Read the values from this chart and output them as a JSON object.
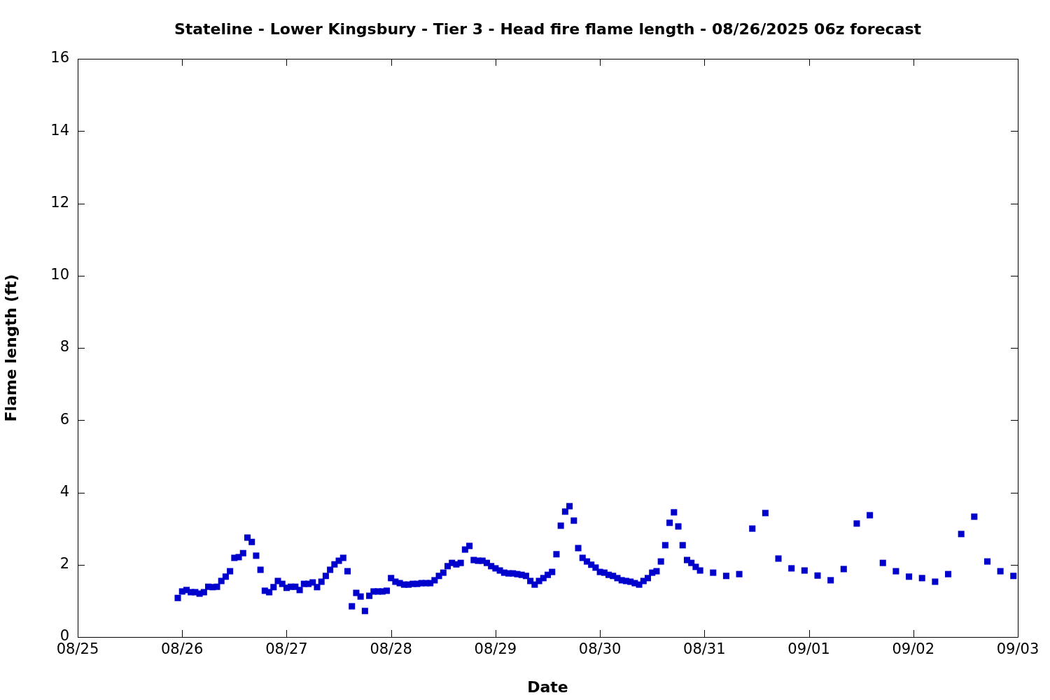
{
  "chart_data": {
    "type": "scatter",
    "title": "Stateline - Lower Kingsbury - Tier 3 - Head fire flame length - 08/26/2025 06z forecast",
    "xlabel": "Date",
    "ylabel": "Flame length (ft)",
    "x": [
      "2025-08-25T23:00",
      "2025-08-26T00:00",
      "2025-08-26T01:00",
      "2025-08-26T02:00",
      "2025-08-26T03:00",
      "2025-08-26T04:00",
      "2025-08-26T05:00",
      "2025-08-26T06:00",
      "2025-08-26T07:00",
      "2025-08-26T08:00",
      "2025-08-26T09:00",
      "2025-08-26T10:00",
      "2025-08-26T11:00",
      "2025-08-26T12:00",
      "2025-08-26T13:00",
      "2025-08-26T14:00",
      "2025-08-26T15:00",
      "2025-08-26T16:00",
      "2025-08-26T17:00",
      "2025-08-26T18:00",
      "2025-08-26T19:00",
      "2025-08-26T20:00",
      "2025-08-26T21:00",
      "2025-08-26T22:00",
      "2025-08-26T23:00",
      "2025-08-27T00:00",
      "2025-08-27T01:00",
      "2025-08-27T02:00",
      "2025-08-27T03:00",
      "2025-08-27T04:00",
      "2025-08-27T05:00",
      "2025-08-27T06:00",
      "2025-08-27T07:00",
      "2025-08-27T08:00",
      "2025-08-27T09:00",
      "2025-08-27T10:00",
      "2025-08-27T11:00",
      "2025-08-27T12:00",
      "2025-08-27T13:00",
      "2025-08-27T14:00",
      "2025-08-27T15:00",
      "2025-08-27T16:00",
      "2025-08-27T17:00",
      "2025-08-27T18:00",
      "2025-08-27T19:00",
      "2025-08-27T20:00",
      "2025-08-27T21:00",
      "2025-08-27T22:00",
      "2025-08-27T23:00",
      "2025-08-28T00:00",
      "2025-08-28T01:00",
      "2025-08-28T02:00",
      "2025-08-28T03:00",
      "2025-08-28T04:00",
      "2025-08-28T05:00",
      "2025-08-28T06:00",
      "2025-08-28T07:00",
      "2025-08-28T08:00",
      "2025-08-28T09:00",
      "2025-08-28T10:00",
      "2025-08-28T11:00",
      "2025-08-28T12:00",
      "2025-08-28T13:00",
      "2025-08-28T14:00",
      "2025-08-28T15:00",
      "2025-08-28T16:00",
      "2025-08-28T17:00",
      "2025-08-28T18:00",
      "2025-08-28T19:00",
      "2025-08-28T20:00",
      "2025-08-28T21:00",
      "2025-08-28T22:00",
      "2025-08-28T23:00",
      "2025-08-29T00:00",
      "2025-08-29T01:00",
      "2025-08-29T02:00",
      "2025-08-29T03:00",
      "2025-08-29T04:00",
      "2025-08-29T05:00",
      "2025-08-29T06:00",
      "2025-08-29T07:00",
      "2025-08-29T08:00",
      "2025-08-29T09:00",
      "2025-08-29T10:00",
      "2025-08-29T11:00",
      "2025-08-29T12:00",
      "2025-08-29T13:00",
      "2025-08-29T14:00",
      "2025-08-29T15:00",
      "2025-08-29T16:00",
      "2025-08-29T17:00",
      "2025-08-29T18:00",
      "2025-08-29T19:00",
      "2025-08-29T20:00",
      "2025-08-29T21:00",
      "2025-08-29T22:00",
      "2025-08-29T23:00",
      "2025-08-30T00:00",
      "2025-08-30T01:00",
      "2025-08-30T02:00",
      "2025-08-30T03:00",
      "2025-08-30T04:00",
      "2025-08-30T05:00",
      "2025-08-30T06:00",
      "2025-08-30T07:00",
      "2025-08-30T08:00",
      "2025-08-30T09:00",
      "2025-08-30T10:00",
      "2025-08-30T11:00",
      "2025-08-30T12:00",
      "2025-08-30T13:00",
      "2025-08-30T14:00",
      "2025-08-30T15:00",
      "2025-08-30T16:00",
      "2025-08-30T17:00",
      "2025-08-30T18:00",
      "2025-08-30T19:00",
      "2025-08-30T20:00",
      "2025-08-30T21:00",
      "2025-08-30T22:00",
      "2025-08-30T23:00",
      "2025-08-31T02:00",
      "2025-08-31T05:00",
      "2025-08-31T08:00",
      "2025-08-31T11:00",
      "2025-08-31T14:00",
      "2025-08-31T17:00",
      "2025-08-31T20:00",
      "2025-08-31T23:00",
      "2025-09-01T02:00",
      "2025-09-01T05:00",
      "2025-09-01T08:00",
      "2025-09-01T11:00",
      "2025-09-01T14:00",
      "2025-09-01T17:00",
      "2025-09-01T20:00",
      "2025-09-01T23:00",
      "2025-09-02T02:00",
      "2025-09-02T05:00",
      "2025-09-02T08:00",
      "2025-09-02T11:00",
      "2025-09-02T14:00",
      "2025-09-02T17:00",
      "2025-09-02T20:00",
      "2025-09-02T23:00"
    ],
    "values": [
      1.08,
      1.26,
      1.3,
      1.24,
      1.24,
      1.2,
      1.24,
      1.39,
      1.38,
      1.39,
      1.55,
      1.67,
      1.82,
      2.19,
      2.21,
      2.32,
      2.75,
      2.63,
      2.25,
      1.86,
      1.28,
      1.24,
      1.38,
      1.55,
      1.47,
      1.36,
      1.39,
      1.39,
      1.3,
      1.47,
      1.47,
      1.51,
      1.38,
      1.53,
      1.69,
      1.86,
      2.01,
      2.11,
      2.19,
      1.82,
      0.85,
      1.22,
      1.12,
      0.72,
      1.14,
      1.26,
      1.26,
      1.26,
      1.28,
      1.63,
      1.53,
      1.49,
      1.45,
      1.45,
      1.47,
      1.47,
      1.49,
      1.49,
      1.49,
      1.57,
      1.69,
      1.78,
      1.96,
      2.05,
      2.01,
      2.05,
      2.42,
      2.52,
      2.13,
      2.11,
      2.11,
      2.05,
      1.96,
      1.9,
      1.84,
      1.78,
      1.76,
      1.76,
      1.74,
      1.72,
      1.69,
      1.55,
      1.45,
      1.55,
      1.63,
      1.72,
      1.8,
      2.29,
      3.08,
      3.47,
      3.62,
      3.22,
      2.46,
      2.19,
      2.09,
      2.0,
      1.92,
      1.8,
      1.78,
      1.72,
      1.69,
      1.63,
      1.57,
      1.55,
      1.53,
      1.49,
      1.45,
      1.55,
      1.63,
      1.78,
      1.82,
      2.09,
      2.54,
      3.16,
      3.45,
      3.06,
      2.54,
      2.13,
      2.05,
      1.94,
      1.84,
      1.78,
      1.69,
      1.74,
      3.0,
      3.43,
      2.17,
      1.9,
      1.84,
      1.7,
      1.57,
      1.88,
      3.14,
      3.37,
      2.05,
      1.82,
      1.67,
      1.63,
      1.53,
      1.74,
      2.85,
      3.33,
      2.09,
      1.82,
      1.69
    ],
    "color": "#0000cc",
    "marker": "square",
    "legend": false,
    "grid": false,
    "xlim": [
      "2025-08-25",
      "2025-09-03"
    ],
    "xticks": [
      {
        "value": "2025-08-25",
        "label": "08/25"
      },
      {
        "value": "2025-08-26",
        "label": "08/26"
      },
      {
        "value": "2025-08-27",
        "label": "08/27"
      },
      {
        "value": "2025-08-28",
        "label": "08/28"
      },
      {
        "value": "2025-08-29",
        "label": "08/29"
      },
      {
        "value": "2025-08-30",
        "label": "08/30"
      },
      {
        "value": "2025-08-31",
        "label": "08/31"
      },
      {
        "value": "2025-09-01",
        "label": "09/01"
      },
      {
        "value": "2025-09-02",
        "label": "09/02"
      },
      {
        "value": "2025-09-03",
        "label": "09/03"
      }
    ],
    "ylim": [
      0,
      16
    ],
    "yticks": [
      0,
      2,
      4,
      6,
      8,
      10,
      12,
      14,
      16
    ]
  }
}
